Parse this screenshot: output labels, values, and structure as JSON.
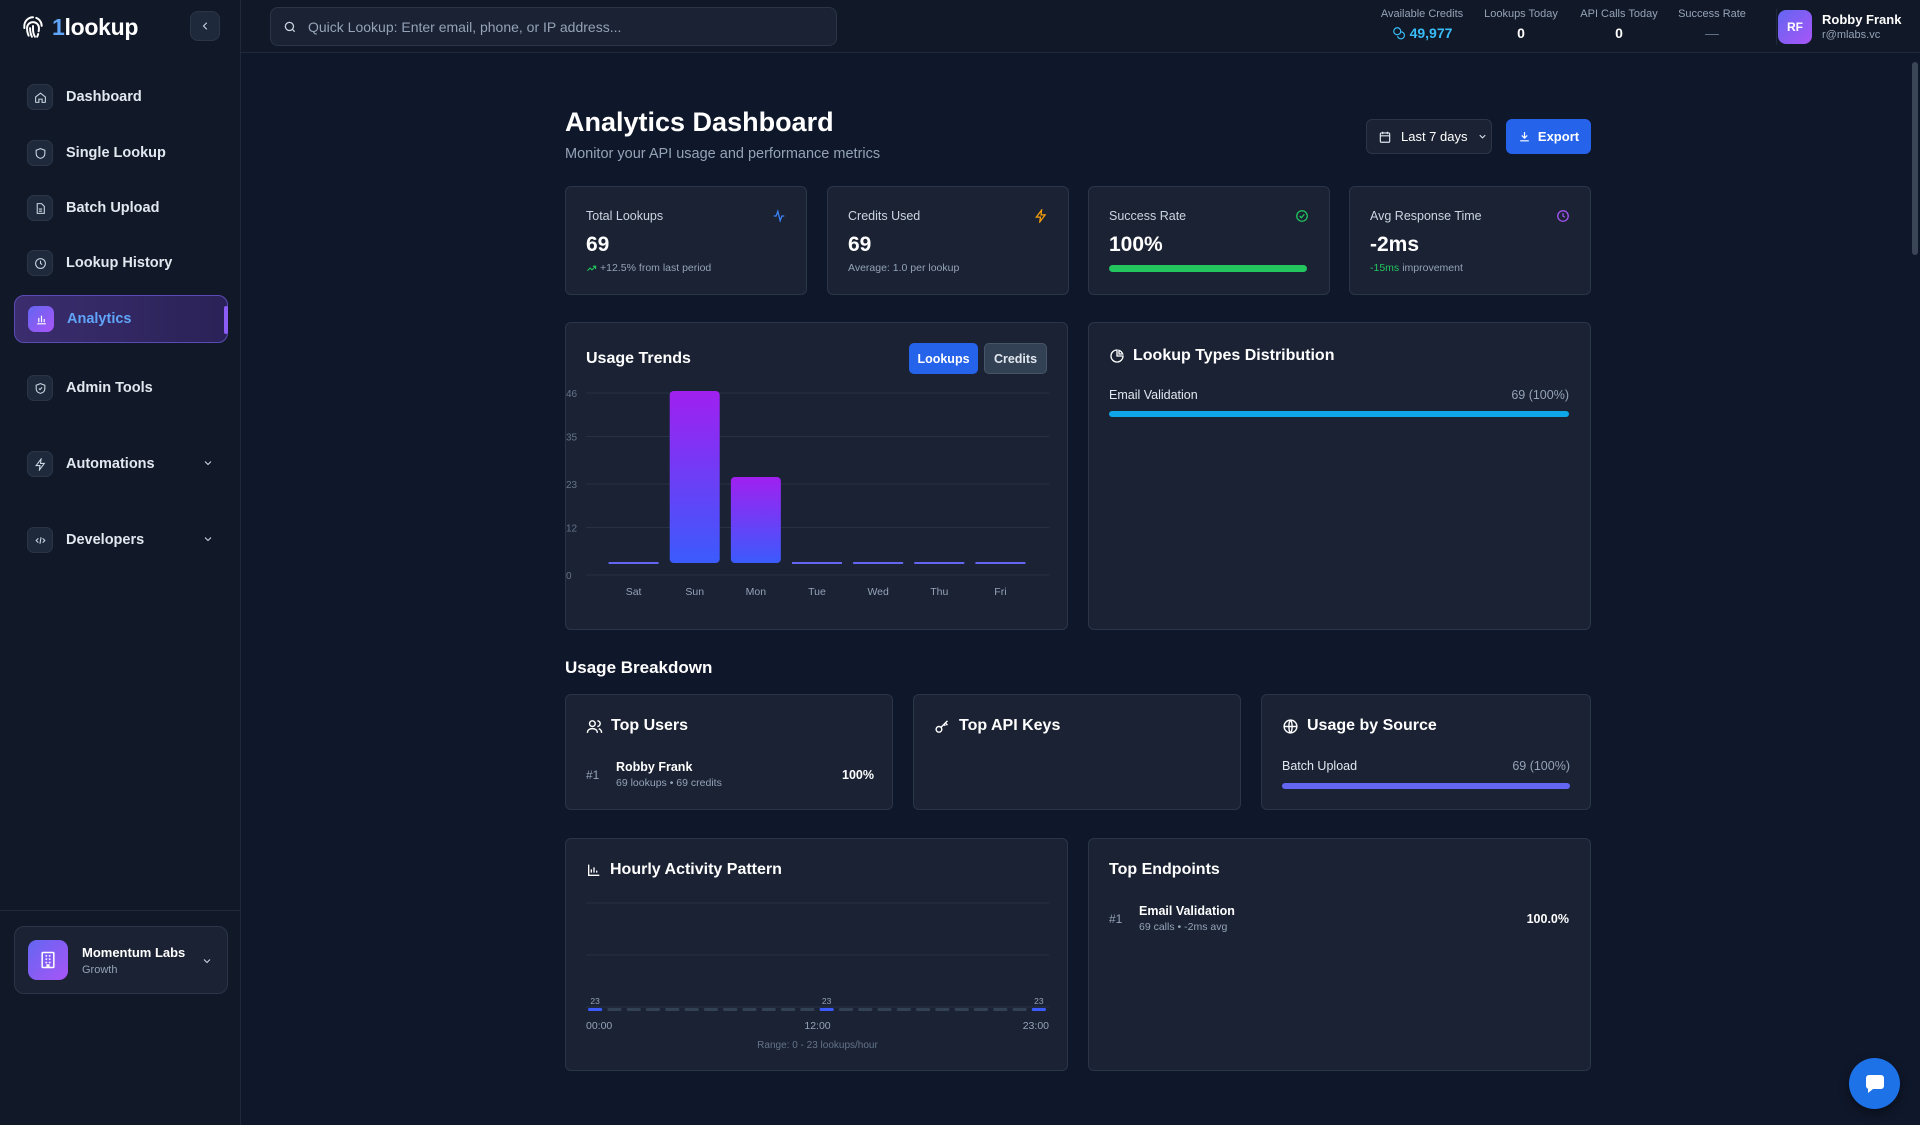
{
  "app": {
    "logo_text_prefix": "1",
    "logo_text_rest": "lookup"
  },
  "sidebar": {
    "items": [
      {
        "label": "Dashboard",
        "icon": "home-icon"
      },
      {
        "label": "Single Lookup",
        "icon": "shield-icon"
      },
      {
        "label": "Batch Upload",
        "icon": "file-icon"
      },
      {
        "label": "Lookup History",
        "icon": "clock-icon"
      },
      {
        "label": "Analytics",
        "icon": "bar-chart-icon",
        "active": true
      },
      {
        "label": "Admin Tools",
        "icon": "shield-check-icon"
      },
      {
        "label": "Automations",
        "icon": "zap-icon",
        "expandable": true
      },
      {
        "label": "Developers",
        "icon": "code-icon",
        "expandable": true
      }
    ],
    "org": {
      "name": "Momentum Labs",
      "plan": "Growth"
    }
  },
  "topbar": {
    "search_placeholder": "Quick Lookup: Enter email, phone, or IP address...",
    "stats": [
      {
        "label": "Available Credits",
        "value": "49,977"
      },
      {
        "label": "Lookups Today",
        "value": "0"
      },
      {
        "label": "API Calls Today",
        "value": "0"
      },
      {
        "label": "Success Rate",
        "value": "—"
      }
    ],
    "user": {
      "initials": "RF",
      "name": "Robby Frank",
      "email": "r@mlabs.vc"
    }
  },
  "header": {
    "title": "Analytics Dashboard",
    "subtitle": "Monitor your API usage and performance metrics",
    "range_label": "Last 7 days",
    "export_label": "Export"
  },
  "kpis": [
    {
      "label": "Total Lookups",
      "value": "69",
      "sub_highlight": "+12.5%",
      "sub": "from last period",
      "icon": "activity-icon"
    },
    {
      "label": "Credits Used",
      "value": "69",
      "sub": "Average: 1.0 per lookup",
      "icon": "zap-icon"
    },
    {
      "label": "Success Rate",
      "value": "100%",
      "progress": 1.0,
      "icon": "check-circle-icon"
    },
    {
      "label": "Avg Response Time",
      "value": "-2ms",
      "sub_highlight": "-15ms",
      "sub": "improvement",
      "icon": "clock-icon"
    }
  ],
  "usage_trends": {
    "title": "Usage Trends",
    "toggle_on": "Lookups",
    "toggle_off": "Credits"
  },
  "chart_data": [
    {
      "type": "bar",
      "title": "Usage Trends",
      "categories": [
        "Sat",
        "Sun",
        "Mon",
        "Tue",
        "Wed",
        "Thu",
        "Fri"
      ],
      "values": [
        0,
        46,
        23,
        0,
        0,
        0,
        0
      ],
      "yticks": [
        "0",
        "12",
        "23",
        "35",
        "46"
      ],
      "ylim": [
        0,
        46
      ],
      "grid": true,
      "colors": {
        "top": "#a020f0",
        "bottom": "#3b5bfc",
        "zero": "#6366f1"
      }
    },
    {
      "type": "bar",
      "title": "Hourly Activity Pattern",
      "x": [
        "00:00",
        "01:00",
        "02:00",
        "03:00",
        "04:00",
        "05:00",
        "06:00",
        "07:00",
        "08:00",
        "09:00",
        "10:00",
        "11:00",
        "12:00",
        "13:00",
        "14:00",
        "15:00",
        "16:00",
        "17:00",
        "18:00",
        "19:00",
        "20:00",
        "21:00",
        "22:00",
        "23:00"
      ],
      "values": [
        23,
        0,
        0,
        0,
        0,
        0,
        0,
        0,
        0,
        0,
        0,
        0,
        23,
        0,
        0,
        0,
        0,
        0,
        0,
        0,
        0,
        0,
        0,
        23
      ],
      "xticks": [
        "00:00",
        "12:00",
        "23:00"
      ],
      "range_label": "Range: 0 - 23 lookups/hour",
      "grid": true,
      "colors": {
        "active": "#3b5bfc",
        "idle": "#334155"
      }
    }
  ],
  "lookup_types": {
    "title": "Lookup Types Distribution",
    "rows": [
      {
        "label": "Email Validation",
        "value": "69 (100%)",
        "fraction": 1.0,
        "color": "#0ea5e9"
      }
    ]
  },
  "breakdown": {
    "title": "Usage Breakdown",
    "top_users": {
      "title": "Top Users",
      "rows": [
        {
          "rank": "#1",
          "name": "Robby Frank",
          "meta": "69 lookups • 69 credits",
          "pct": "100%"
        }
      ]
    },
    "top_api_keys": {
      "title": "Top API Keys"
    },
    "usage_by_source": {
      "title": "Usage by Source",
      "rows": [
        {
          "label": "Batch Upload",
          "value": "69 (100%)",
          "fraction": 1.0,
          "color": "#6366f1"
        }
      ]
    }
  },
  "hourly": {
    "title": "Hourly Activity Pattern"
  },
  "top_endpoints": {
    "title": "Top Endpoints",
    "rows": [
      {
        "rank": "#1",
        "name": "Email Validation",
        "meta": "69 calls • -2ms avg",
        "pct": "100.0%"
      }
    ]
  }
}
